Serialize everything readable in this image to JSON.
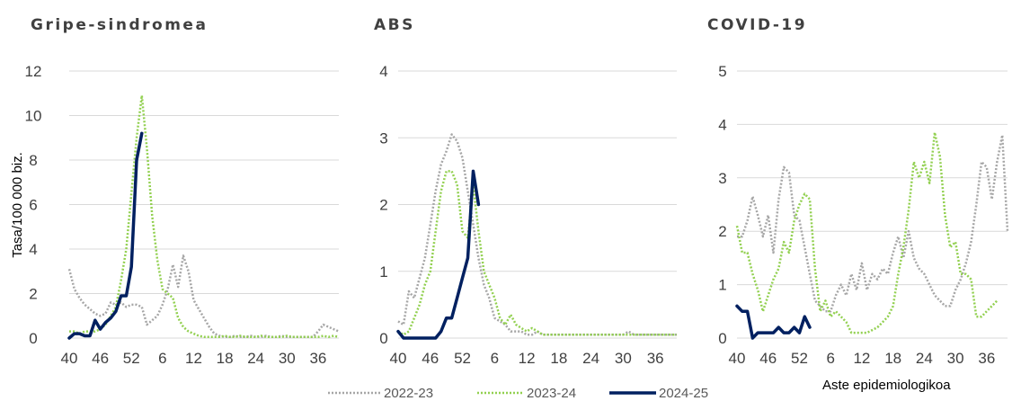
{
  "chart_data": {
    "type": "line",
    "ylabel": "Tasa/100 000 biz.",
    "xlabel": "Aste epidemiologikoa",
    "x_ticks": [
      "40",
      "46",
      "52",
      "6",
      "12",
      "18",
      "24",
      "30",
      "36"
    ],
    "legend": {
      "placement": "bottom",
      "entries": [
        {
          "name": "2022-23",
          "color": "#a6a6a6",
          "style": "dotted"
        },
        {
          "name": "2023-24",
          "color": "#92d050",
          "style": "dotted"
        },
        {
          "name": "2024-25",
          "color": "#002060",
          "style": "solid"
        }
      ]
    },
    "panels": [
      {
        "title": "Gripe-sindromea",
        "ylim": [
          0,
          12
        ],
        "y_ticks": [
          "0",
          "2",
          "4",
          "6",
          "8",
          "10",
          "12"
        ],
        "series": [
          {
            "name": "2022-23",
            "values": [
              3.1,
              2.2,
              1.8,
              1.5,
              1.3,
              1.1,
              1.0,
              1.1,
              1.6,
              1.5,
              1.6,
              1.4,
              1.5,
              1.5,
              1.4,
              0.6,
              0.8,
              1.0,
              1.5,
              2.2,
              3.3,
              2.3,
              3.7,
              3.0,
              1.7,
              1.3,
              0.9,
              0.5,
              0.2,
              0.1,
              0.05,
              0.05,
              0.1,
              0.05,
              0.05,
              0.1,
              0.05,
              0.05,
              0.1,
              0.05,
              0.05,
              0.1,
              0.05,
              0.05,
              0.05,
              0.05,
              0.05,
              0.05,
              0.3,
              0.6,
              0.5,
              0.4,
              0.3
            ]
          },
          {
            "name": "2023-24",
            "values": [
              0.3,
              0.3,
              0.2,
              0.3,
              0.3,
              0.3,
              0.4,
              0.6,
              1.0,
              1.4,
              2.6,
              4.0,
              6.5,
              9.0,
              10.9,
              8.5,
              5.5,
              3.5,
              2.2,
              2.0,
              1.8,
              0.9,
              0.5,
              0.3,
              0.2,
              0.1,
              0.05,
              0.05,
              0.05,
              0.05,
              0.1,
              0.05,
              0.05,
              0.1,
              0.05,
              0.05,
              0.05,
              0.1,
              0.05,
              0.05,
              0.05,
              0.05,
              0.1,
              0.05,
              0.05,
              0.05,
              0.05,
              0.05,
              0.05,
              0.1,
              0.05,
              0.1,
              0.05
            ]
          },
          {
            "name": "2024-25",
            "values": [
              0.0,
              0.2,
              0.2,
              0.1,
              0.1,
              0.8,
              0.4,
              0.7,
              0.9,
              1.2,
              1.9,
              1.9,
              3.2,
              8.0,
              9.2
            ]
          }
        ]
      },
      {
        "title": "ABS",
        "ylim": [
          0,
          4
        ],
        "y_ticks": [
          "0",
          "1",
          "2",
          "3",
          "4"
        ],
        "series": [
          {
            "name": "2022-23",
            "values": [
              0.25,
              0.2,
              0.7,
              0.6,
              0.9,
              1.2,
              1.7,
              2.2,
              2.6,
              2.8,
              3.05,
              2.95,
              2.7,
              2.2,
              1.7,
              1.2,
              0.8,
              0.6,
              0.3,
              0.25,
              0.2,
              0.1,
              0.1,
              0.1,
              0.05,
              0.05,
              0.1,
              0.05,
              0.05,
              0.05,
              0.05,
              0.05,
              0.05,
              0.05,
              0.05,
              0.05,
              0.05,
              0.05,
              0.05,
              0.05,
              0.05,
              0.05,
              0.05,
              0.1,
              0.05,
              0.05,
              0.05,
              0.05,
              0.05,
              0.05,
              0.05,
              0.05,
              0.05
            ]
          },
          {
            "name": "2023-24",
            "values": [
              0.1,
              0.05,
              0.1,
              0.3,
              0.5,
              0.8,
              1.0,
              1.6,
              2.2,
              2.5,
              2.5,
              2.3,
              1.6,
              1.5,
              2.3,
              1.6,
              1.0,
              0.8,
              0.6,
              0.3,
              0.2,
              0.35,
              0.2,
              0.15,
              0.1,
              0.15,
              0.1,
              0.05,
              0.05,
              0.05,
              0.05,
              0.05,
              0.05,
              0.05,
              0.05,
              0.05,
              0.05,
              0.05,
              0.05,
              0.05,
              0.05,
              0.05,
              0.05,
              0.05,
              0.05,
              0.05,
              0.05,
              0.05,
              0.05,
              0.05,
              0.05,
              0.05,
              0.05
            ]
          },
          {
            "name": "2024-25",
            "values": [
              0.1,
              0.0,
              0.0,
              0.0,
              0.0,
              0.0,
              0.0,
              0.0,
              0.1,
              0.3,
              0.3,
              0.6,
              0.9,
              1.2,
              2.5,
              2.0
            ]
          }
        ]
      },
      {
        "title": "COVID-19",
        "ylim": [
          0,
          5
        ],
        "y_ticks": [
          "0",
          "1",
          "2",
          "3",
          "4",
          "5"
        ],
        "series": [
          {
            "name": "2022-23",
            "values": [
              1.9,
              1.9,
              2.2,
              2.65,
              2.3,
              1.9,
              2.3,
              1.6,
              2.6,
              3.2,
              3.1,
              2.3,
              2.2,
              1.7,
              1.2,
              0.7,
              0.6,
              0.5,
              0.5,
              0.8,
              1.0,
              0.8,
              1.2,
              0.9,
              1.4,
              0.9,
              1.2,
              1.1,
              1.3,
              1.2,
              1.6,
              1.9,
              1.5,
              2.0,
              1.5,
              1.3,
              1.2,
              1.0,
              0.8,
              0.7,
              0.6,
              0.6,
              0.9,
              1.1,
              1.4,
              1.8,
              2.5,
              3.3,
              3.2,
              2.6,
              3.3,
              3.8,
              2.0
            ]
          },
          {
            "name": "2023-24",
            "values": [
              2.1,
              1.6,
              1.6,
              1.2,
              0.9,
              0.5,
              0.8,
              1.1,
              1.3,
              1.8,
              1.6,
              2.2,
              2.5,
              2.7,
              2.6,
              1.3,
              0.5,
              0.7,
              0.4,
              0.5,
              0.4,
              0.3,
              0.1,
              0.1,
              0.1,
              0.1,
              0.15,
              0.2,
              0.3,
              0.4,
              0.6,
              1.2,
              1.7,
              2.4,
              3.3,
              3.0,
              3.3,
              2.9,
              3.85,
              3.4,
              2.3,
              1.7,
              1.8,
              1.2,
              1.2,
              1.1,
              0.4,
              0.4,
              0.5,
              0.6,
              0.7
            ]
          },
          {
            "name": "2024-25",
            "values": [
              0.6,
              0.5,
              0.5,
              0.0,
              0.1,
              0.1,
              0.1,
              0.1,
              0.2,
              0.1,
              0.1,
              0.2,
              0.1,
              0.4,
              0.2
            ]
          }
        ]
      }
    ]
  }
}
